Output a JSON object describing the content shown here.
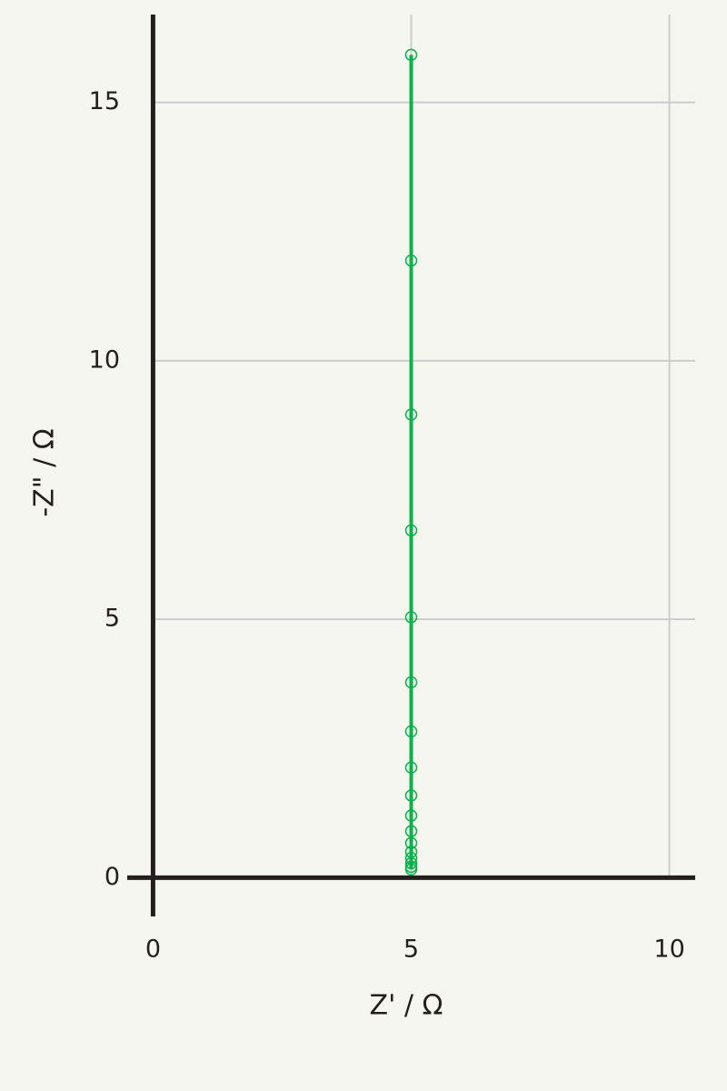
{
  "chart_data": {
    "type": "scatter-line",
    "x_label": "Z' / Ω",
    "y_label": "-Z\" / Ω",
    "xlim": [
      -0.5,
      10.5
    ],
    "xticks": [
      0,
      5,
      10
    ],
    "ylim": [
      -0.75,
      16.7
    ],
    "yticks": [
      0,
      5,
      10,
      15
    ],
    "grid": true,
    "series": [
      {
        "color": "#0bb14a",
        "x": [
          5,
          5,
          5,
          5,
          5,
          5,
          5,
          5,
          5,
          5,
          5,
          5,
          5,
          5,
          5,
          5,
          5
        ],
        "values": [
          0.16,
          0.21,
          0.28,
          0.38,
          0.5,
          0.67,
          0.9,
          1.2,
          1.59,
          2.13,
          2.83,
          3.78,
          5.04,
          6.72,
          8.96,
          11.94,
          15.92
        ]
      }
    ]
  }
}
